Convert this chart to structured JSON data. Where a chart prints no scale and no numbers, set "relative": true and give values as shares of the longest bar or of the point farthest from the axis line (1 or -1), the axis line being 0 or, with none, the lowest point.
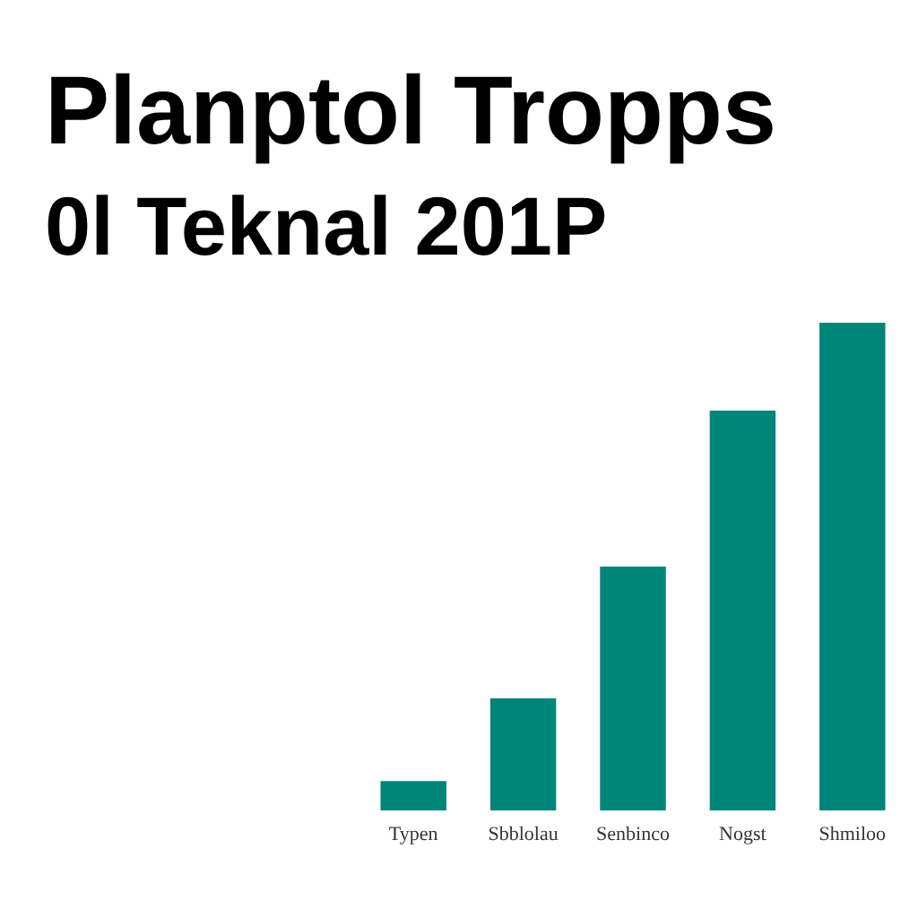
{
  "chart_data": {
    "type": "bar",
    "title": "Planptol Tropps",
    "subtitle": "0l Teknal 201P",
    "categories": [
      "Typen",
      "Sbblolau",
      "Senbinco",
      "Nogst",
      "Shmiloo"
    ],
    "values": [
      0.06,
      0.23,
      0.5,
      0.82,
      1
    ],
    "color": "#00857a",
    "relative": true
  }
}
